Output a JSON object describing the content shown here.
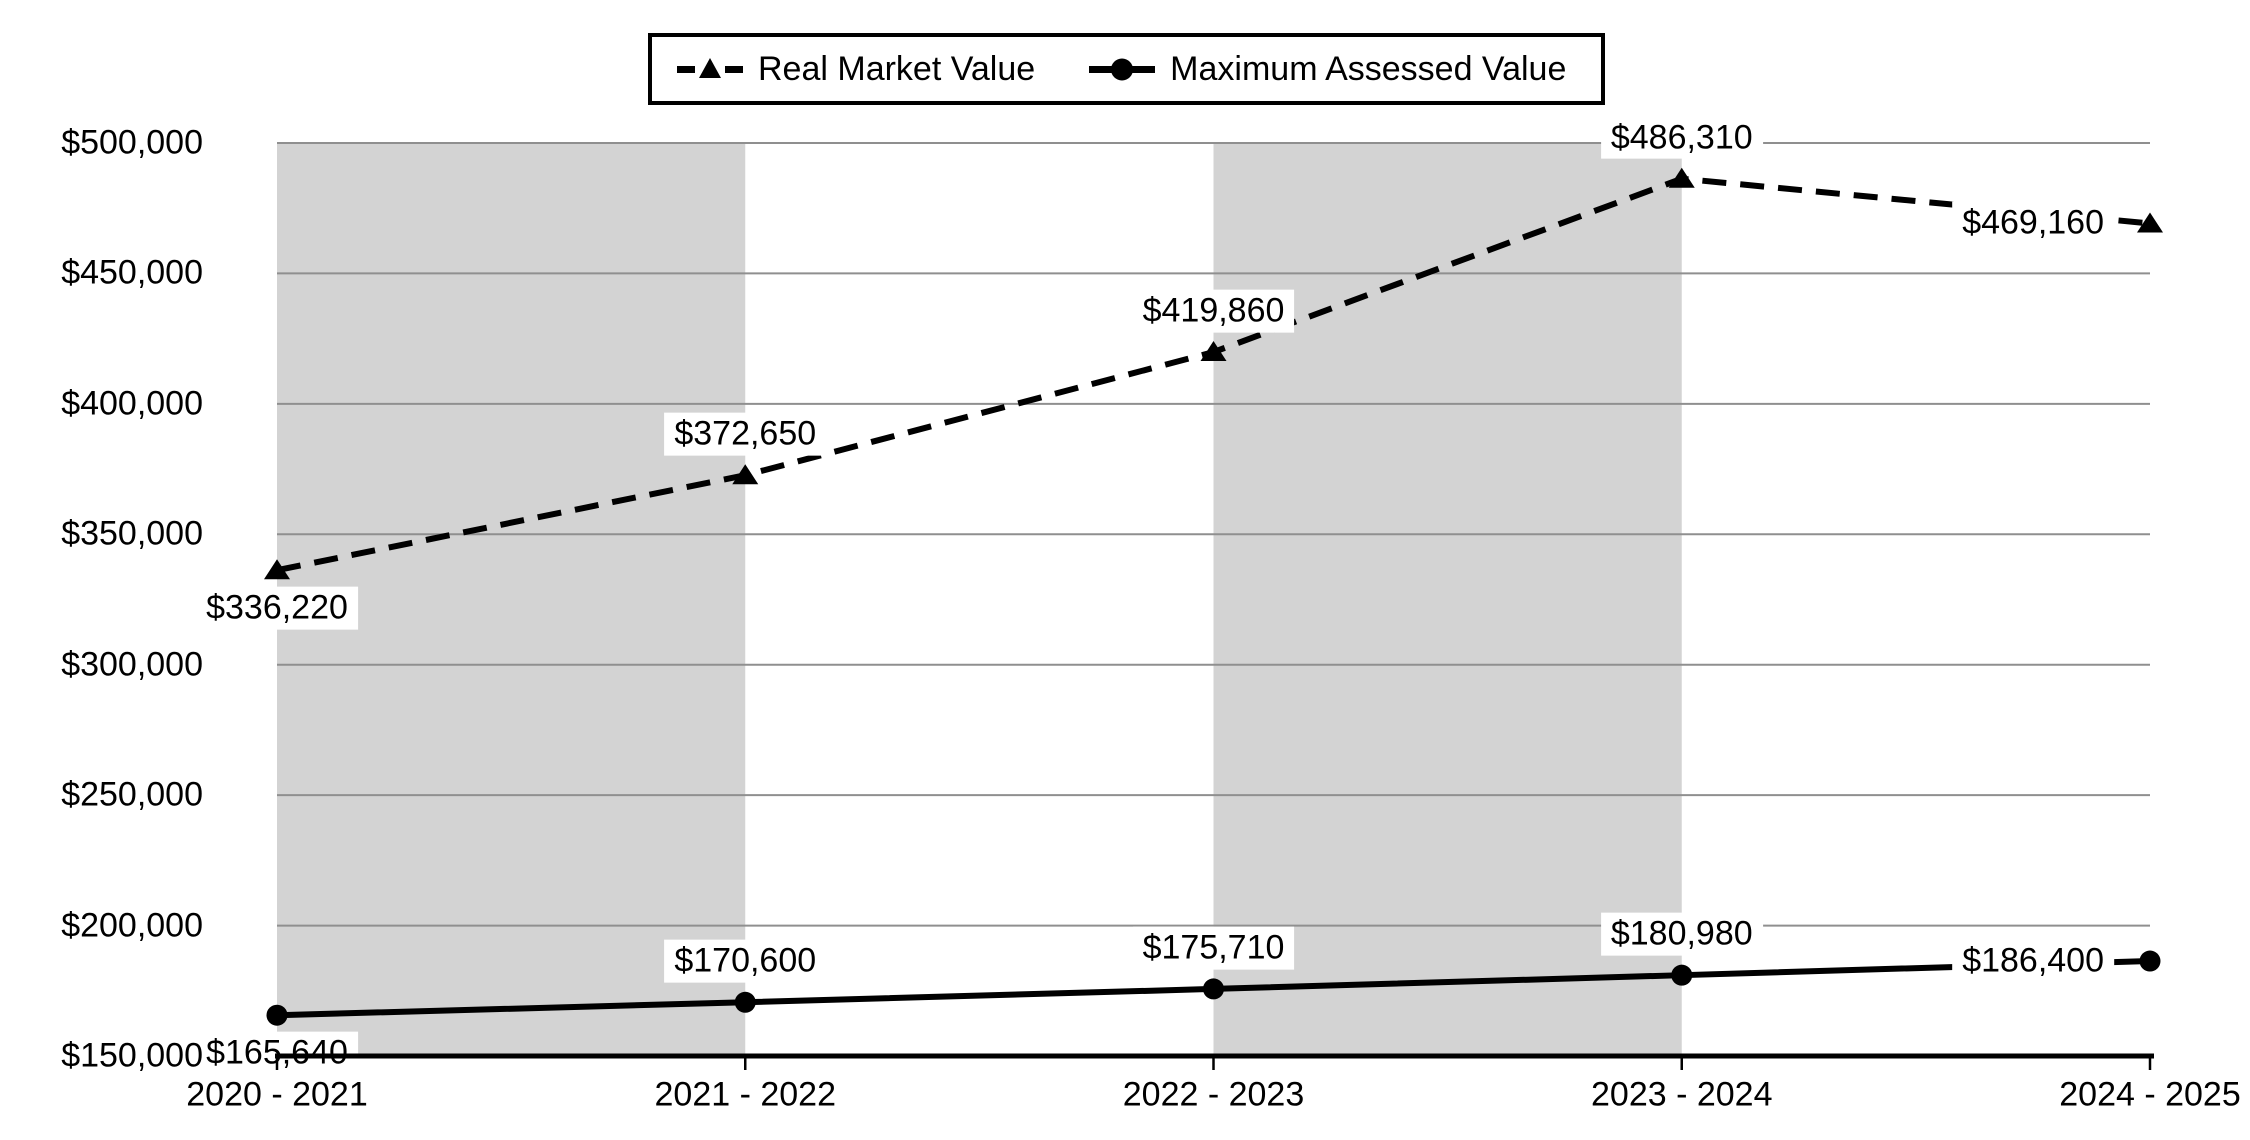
{
  "legend": {
    "items": [
      {
        "label": "Real Market Value",
        "sample": "dashed-line-triangle-marker"
      },
      {
        "label": "Maximum Assessed Value",
        "sample": "solid-line-circle-marker"
      }
    ]
  },
  "chart_data": {
    "type": "line",
    "title": "",
    "xlabel": "",
    "ylabel": "",
    "categories": [
      "2020 - 2021",
      "2021 - 2022",
      "2022 - 2023",
      "2023 - 2024",
      "2024 - 2025"
    ],
    "series": [
      {
        "name": "Real Market Value",
        "line_style": "dashed",
        "marker": "triangle",
        "color": "#000000",
        "values": [
          336220,
          372650,
          419860,
          486310,
          469160
        ],
        "labels": [
          "$336,220",
          "$372,650",
          "$419,860",
          "$486,310",
          "$469,160"
        ],
        "label_placements": [
          "below",
          "above",
          "above",
          "above",
          "left"
        ]
      },
      {
        "name": "Maximum Assessed Value",
        "line_style": "solid",
        "marker": "circle",
        "color": "#000000",
        "values": [
          165640,
          170600,
          175710,
          180980,
          186400
        ],
        "labels": [
          "$165,640",
          "$170,600",
          "$175,710",
          "$180,980",
          "$186,400"
        ],
        "label_placements": [
          "below",
          "above",
          "above",
          "above",
          "left"
        ]
      }
    ],
    "ylim": [
      150000,
      500000
    ],
    "ytick_step": 50000,
    "yticks": [
      {
        "value": 150000,
        "label": "$150,000"
      },
      {
        "value": 200000,
        "label": "$200,000"
      },
      {
        "value": 250000,
        "label": "$250,000"
      },
      {
        "value": 300000,
        "label": "$300,000"
      },
      {
        "value": 350000,
        "label": "$350,000"
      },
      {
        "value": 400000,
        "label": "$400,000"
      },
      {
        "value": 450000,
        "label": "$450,000"
      },
      {
        "value": 500000,
        "label": "$500,000"
      }
    ],
    "grid": "horizontal",
    "legend_position": "top-center",
    "shaded_bands": [
      [
        0,
        1
      ],
      [
        2,
        3
      ]
    ],
    "colors": {
      "background": "#ffffff",
      "band": "#d3d3d3",
      "gridline": "#8f8f8f",
      "axis": "#000000",
      "series": "#000000",
      "text": "#000000",
      "label_background": "#ffffff"
    }
  }
}
